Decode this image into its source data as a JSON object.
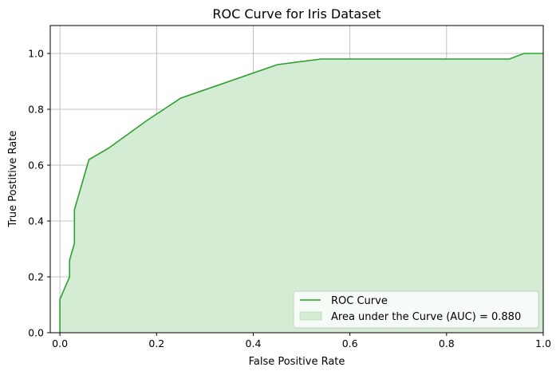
{
  "chart_data": {
    "type": "area",
    "title": "ROC Curve for Iris Dataset",
    "xlabel": "False Positive Rate",
    "ylabel": "True Postitive Rate",
    "xlim": [
      -0.02,
      1.0
    ],
    "ylim": [
      0.0,
      1.1
    ],
    "xticks": [
      "0.0",
      "0.2",
      "0.4",
      "0.6",
      "0.8",
      "1.0"
    ],
    "xtick_values": [
      0.0,
      0.2,
      0.4,
      0.6,
      0.8,
      1.0
    ],
    "yticks": [
      "0.0",
      "0.2",
      "0.4",
      "0.6",
      "0.8",
      "1.0"
    ],
    "ytick_values": [
      0.0,
      0.2,
      0.4,
      0.6,
      0.8,
      1.0
    ],
    "grid": true,
    "legend_position": "bottom-right",
    "series": [
      {
        "name": "ROC Curve",
        "color": "#2ca02c",
        "x": [
          0.0,
          0.0,
          0.02,
          0.02,
          0.03,
          0.03,
          0.06,
          0.1,
          0.18,
          0.25,
          0.45,
          0.54,
          0.93,
          0.96,
          1.0
        ],
        "y": [
          0.0,
          0.12,
          0.2,
          0.26,
          0.32,
          0.44,
          0.62,
          0.66,
          0.76,
          0.84,
          0.96,
          0.98,
          0.98,
          1.0,
          1.0
        ]
      }
    ],
    "area": {
      "name": "Area under the Curve (AUC) = 0.880",
      "color": "#d4ebd4"
    }
  }
}
